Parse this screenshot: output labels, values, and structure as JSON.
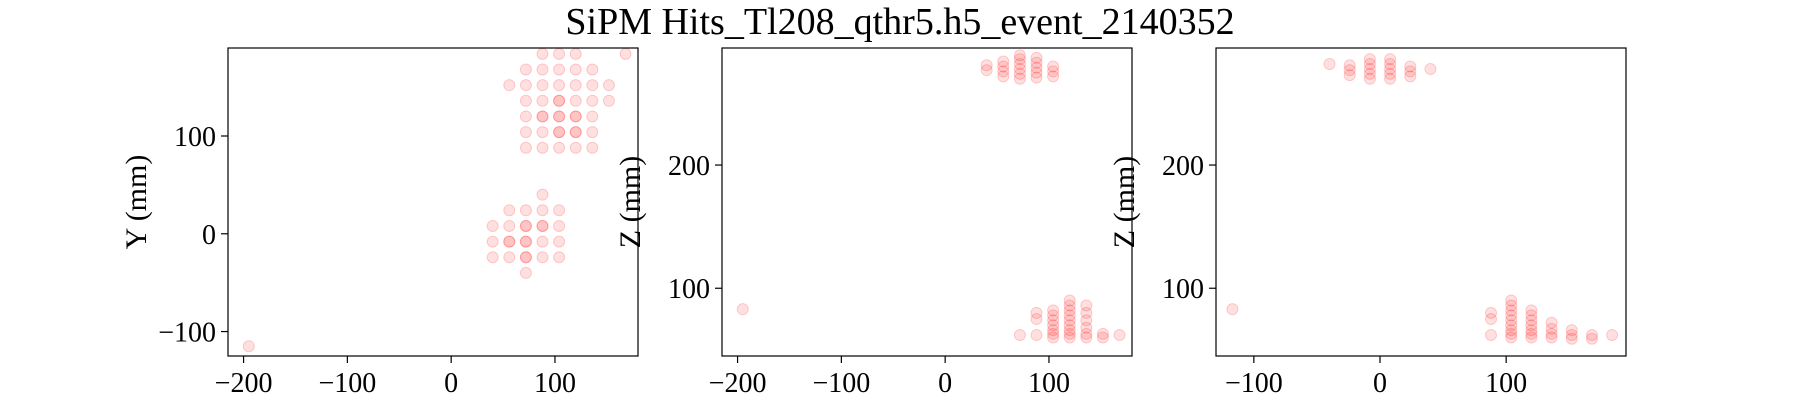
{
  "figure": {
    "title": "SiPM Hits_Tl208_qthr5.h5_event_2140352",
    "marker_color": "#ff0000"
  },
  "chart_data": [
    {
      "type": "scatter",
      "xlabel": "",
      "ylabel": "Y (mm)",
      "xlim": [
        -215,
        180
      ],
      "ylim": [
        -125,
        190
      ],
      "xticks": [
        -200,
        -100,
        0,
        100
      ],
      "yticks": [
        -100,
        0,
        100
      ],
      "xtick_labels": [
        "−200",
        "−100",
        "0",
        "100"
      ],
      "ytick_labels": [
        "−100",
        "0",
        "100"
      ],
      "points": [
        [
          -195,
          -115
        ],
        [
          40,
          -24
        ],
        [
          56,
          -24
        ],
        [
          72,
          -24
        ],
        [
          88,
          -24
        ],
        [
          104,
          -24
        ],
        [
          40,
          -8
        ],
        [
          56,
          -8
        ],
        [
          72,
          -8
        ],
        [
          88,
          -8
        ],
        [
          104,
          -8
        ],
        [
          40,
          8
        ],
        [
          56,
          8
        ],
        [
          72,
          8
        ],
        [
          88,
          8
        ],
        [
          104,
          8
        ],
        [
          56,
          24
        ],
        [
          72,
          24
        ],
        [
          88,
          24
        ],
        [
          104,
          24
        ],
        [
          72,
          -40
        ],
        [
          88,
          40
        ],
        [
          56,
          -8
        ],
        [
          72,
          -8
        ],
        [
          72,
          8
        ],
        [
          88,
          8
        ],
        [
          72,
          -24
        ],
        [
          72,
          88
        ],
        [
          88,
          88
        ],
        [
          104,
          88
        ],
        [
          120,
          88
        ],
        [
          136,
          88
        ],
        [
          72,
          104
        ],
        [
          88,
          104
        ],
        [
          104,
          104
        ],
        [
          120,
          104
        ],
        [
          136,
          104
        ],
        [
          72,
          120
        ],
        [
          88,
          120
        ],
        [
          104,
          120
        ],
        [
          120,
          120
        ],
        [
          136,
          120
        ],
        [
          72,
          136
        ],
        [
          88,
          136
        ],
        [
          104,
          136
        ],
        [
          120,
          136
        ],
        [
          136,
          136
        ],
        [
          152,
          136
        ],
        [
          56,
          152
        ],
        [
          72,
          152
        ],
        [
          88,
          152
        ],
        [
          104,
          152
        ],
        [
          120,
          152
        ],
        [
          136,
          152
        ],
        [
          152,
          152
        ],
        [
          72,
          168
        ],
        [
          88,
          168
        ],
        [
          104,
          168
        ],
        [
          120,
          168
        ],
        [
          136,
          168
        ],
        [
          88,
          184
        ],
        [
          104,
          184
        ],
        [
          120,
          184
        ],
        [
          168,
          184
        ],
        [
          104,
          120
        ],
        [
          104,
          104
        ],
        [
          120,
          120
        ],
        [
          104,
          136
        ],
        [
          88,
          120
        ],
        [
          120,
          104
        ]
      ]
    },
    {
      "type": "scatter",
      "xlabel": "",
      "ylabel": "Z (mm)",
      "xlim": [
        -215,
        180
      ],
      "ylim": [
        45,
        295
      ],
      "xticks": [
        -200,
        -100,
        0,
        100
      ],
      "yticks": [
        100,
        200
      ],
      "xtick_labels": [
        "−200",
        "−100",
        "0",
        "100"
      ],
      "ytick_labels": [
        "100",
        "200"
      ],
      "points": [
        [
          -195,
          83
        ],
        [
          40,
          277
        ],
        [
          40,
          281
        ],
        [
          56,
          272
        ],
        [
          56,
          276
        ],
        [
          56,
          280
        ],
        [
          56,
          284
        ],
        [
          72,
          270
        ],
        [
          72,
          274
        ],
        [
          72,
          278
        ],
        [
          72,
          282
        ],
        [
          72,
          286
        ],
        [
          72,
          289
        ],
        [
          88,
          271
        ],
        [
          88,
          275
        ],
        [
          88,
          279
        ],
        [
          88,
          283
        ],
        [
          88,
          287
        ],
        [
          104,
          272
        ],
        [
          104,
          276
        ],
        [
          104,
          280
        ],
        [
          72,
          62
        ],
        [
          88,
          62
        ],
        [
          88,
          75
        ],
        [
          88,
          80
        ],
        [
          104,
          60
        ],
        [
          104,
          63
        ],
        [
          104,
          66
        ],
        [
          104,
          70
        ],
        [
          104,
          74
        ],
        [
          104,
          78
        ],
        [
          104,
          82
        ],
        [
          120,
          60
        ],
        [
          120,
          63
        ],
        [
          120,
          66
        ],
        [
          120,
          70
        ],
        [
          120,
          74
        ],
        [
          120,
          78
        ],
        [
          120,
          82
        ],
        [
          120,
          86
        ],
        [
          120,
          90
        ],
        [
          136,
          60
        ],
        [
          136,
          63
        ],
        [
          136,
          68
        ],
        [
          136,
          74
        ],
        [
          136,
          80
        ],
        [
          136,
          86
        ],
        [
          152,
          60
        ],
        [
          152,
          63
        ],
        [
          168,
          62
        ]
      ]
    },
    {
      "type": "scatter",
      "xlabel": "",
      "ylabel": "Z (mm)",
      "xlim": [
        -130,
        195
      ],
      "ylim": [
        45,
        295
      ],
      "xticks": [
        -100,
        0,
        100
      ],
      "yticks": [
        100,
        200
      ],
      "xtick_labels": [
        "−100",
        "0",
        "100"
      ],
      "ytick_labels": [
        "100",
        "200"
      ],
      "points": [
        [
          -117,
          83
        ],
        [
          -40,
          282
        ],
        [
          -24,
          273
        ],
        [
          -24,
          277
        ],
        [
          -24,
          281
        ],
        [
          -8,
          270
        ],
        [
          -8,
          274
        ],
        [
          -8,
          278
        ],
        [
          -8,
          282
        ],
        [
          -8,
          286
        ],
        [
          8,
          270
        ],
        [
          8,
          274
        ],
        [
          8,
          278
        ],
        [
          8,
          282
        ],
        [
          8,
          286
        ],
        [
          24,
          272
        ],
        [
          24,
          276
        ],
        [
          24,
          280
        ],
        [
          40,
          278
        ],
        [
          88,
          62
        ],
        [
          88,
          75
        ],
        [
          88,
          80
        ],
        [
          104,
          60
        ],
        [
          104,
          63
        ],
        [
          104,
          66
        ],
        [
          104,
          70
        ],
        [
          104,
          74
        ],
        [
          104,
          78
        ],
        [
          104,
          82
        ],
        [
          104,
          86
        ],
        [
          104,
          90
        ],
        [
          120,
          60
        ],
        [
          120,
          63
        ],
        [
          120,
          66
        ],
        [
          120,
          70
        ],
        [
          120,
          74
        ],
        [
          120,
          78
        ],
        [
          120,
          82
        ],
        [
          136,
          60
        ],
        [
          136,
          63
        ],
        [
          136,
          67
        ],
        [
          136,
          72
        ],
        [
          152,
          59
        ],
        [
          152,
          62
        ],
        [
          152,
          66
        ],
        [
          168,
          59
        ],
        [
          168,
          62
        ],
        [
          184,
          62
        ]
      ]
    }
  ]
}
